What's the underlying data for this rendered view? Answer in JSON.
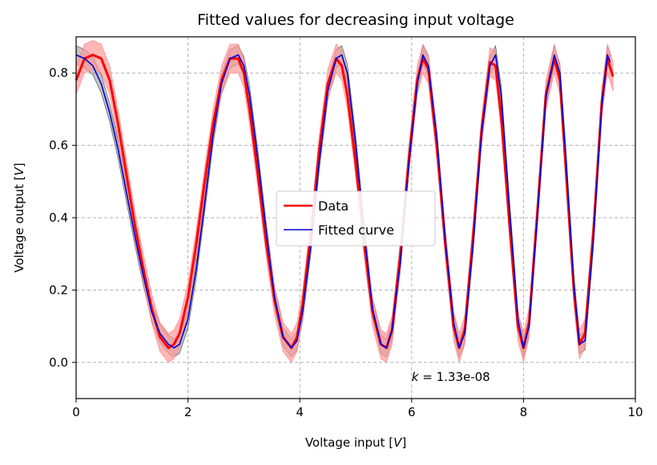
{
  "chart_data": {
    "type": "line",
    "title": "Fitted values for decreasing input voltage",
    "xlabel": "Voltage input [",
    "xlabel_unit": "V",
    "xlabel_close": "]",
    "ylabel": "Voltage output [",
    "ylabel_unit": "V",
    "ylabel_close": "]",
    "xlim": [
      0,
      10
    ],
    "ylim": [
      -0.1,
      0.9
    ],
    "xticks": [
      0,
      2,
      4,
      6,
      8,
      10
    ],
    "yticks": [
      0.0,
      0.2,
      0.4,
      0.6,
      0.8
    ],
    "xtick_labels": [
      "0",
      "2",
      "4",
      "6",
      "8",
      "10"
    ],
    "ytick_labels": [
      "0.0",
      "0.2",
      "0.4",
      "0.6",
      "0.8"
    ],
    "grid": true,
    "legend_position": "center",
    "annotation": {
      "symbol": "k",
      "text": " = 1.33e-08",
      "x": 6.0,
      "y": -0.04
    },
    "series": [
      {
        "name": "Data",
        "color": "#ff0000",
        "band_color": "#ff9999",
        "x": [
          0.0,
          0.15,
          0.3,
          0.45,
          0.6,
          0.75,
          0.9,
          1.05,
          1.2,
          1.35,
          1.5,
          1.65,
          1.75,
          1.85,
          2.0,
          2.15,
          2.3,
          2.45,
          2.6,
          2.75,
          2.9,
          3.0,
          3.1,
          3.25,
          3.4,
          3.55,
          3.7,
          3.85,
          3.95,
          4.05,
          4.2,
          4.35,
          4.5,
          4.65,
          4.75,
          4.85,
          5.0,
          5.15,
          5.3,
          5.45,
          5.55,
          5.65,
          5.8,
          5.95,
          6.1,
          6.2,
          6.3,
          6.45,
          6.6,
          6.75,
          6.85,
          6.95,
          7.1,
          7.25,
          7.4,
          7.5,
          7.6,
          7.75,
          7.9,
          8.0,
          8.1,
          8.25,
          8.4,
          8.55,
          8.65,
          8.75,
          8.9,
          9.0,
          9.1,
          9.25,
          9.4,
          9.5,
          9.6
        ],
        "y": [
          0.78,
          0.84,
          0.85,
          0.84,
          0.78,
          0.66,
          0.52,
          0.38,
          0.26,
          0.15,
          0.07,
          0.04,
          0.05,
          0.08,
          0.18,
          0.33,
          0.5,
          0.66,
          0.78,
          0.84,
          0.84,
          0.8,
          0.7,
          0.52,
          0.33,
          0.17,
          0.07,
          0.04,
          0.07,
          0.16,
          0.36,
          0.59,
          0.77,
          0.84,
          0.82,
          0.74,
          0.55,
          0.33,
          0.14,
          0.05,
          0.04,
          0.09,
          0.3,
          0.56,
          0.78,
          0.84,
          0.81,
          0.6,
          0.33,
          0.1,
          0.04,
          0.09,
          0.35,
          0.64,
          0.83,
          0.82,
          0.68,
          0.38,
          0.1,
          0.04,
          0.11,
          0.42,
          0.74,
          0.84,
          0.78,
          0.55,
          0.2,
          0.05,
          0.08,
          0.36,
          0.72,
          0.84,
          0.79
        ]
      },
      {
        "name": "Fitted curve",
        "color": "#0000dd",
        "band_color": "#555555",
        "x": [
          0.0,
          0.15,
          0.3,
          0.45,
          0.6,
          0.75,
          0.9,
          1.05,
          1.2,
          1.35,
          1.5,
          1.65,
          1.75,
          1.85,
          2.0,
          2.15,
          2.3,
          2.45,
          2.6,
          2.75,
          2.9,
          3.0,
          3.1,
          3.25,
          3.4,
          3.55,
          3.7,
          3.85,
          3.95,
          4.05,
          4.2,
          4.35,
          4.5,
          4.65,
          4.75,
          4.85,
          5.0,
          5.15,
          5.3,
          5.45,
          5.55,
          5.65,
          5.8,
          5.95,
          6.1,
          6.2,
          6.3,
          6.45,
          6.6,
          6.75,
          6.85,
          6.95,
          7.1,
          7.25,
          7.4,
          7.5,
          7.6,
          7.75,
          7.9,
          8.0,
          8.1,
          8.25,
          8.4,
          8.55,
          8.65,
          8.75,
          8.9,
          9.0,
          9.1,
          9.25,
          9.4,
          9.5,
          9.55
        ],
        "y": [
          0.85,
          0.84,
          0.82,
          0.77,
          0.69,
          0.59,
          0.47,
          0.35,
          0.24,
          0.14,
          0.08,
          0.05,
          0.04,
          0.05,
          0.12,
          0.26,
          0.44,
          0.63,
          0.77,
          0.84,
          0.85,
          0.82,
          0.74,
          0.56,
          0.36,
          0.18,
          0.07,
          0.04,
          0.06,
          0.14,
          0.33,
          0.56,
          0.75,
          0.84,
          0.85,
          0.8,
          0.6,
          0.36,
          0.15,
          0.05,
          0.04,
          0.09,
          0.28,
          0.55,
          0.77,
          0.85,
          0.82,
          0.62,
          0.34,
          0.11,
          0.04,
          0.08,
          0.33,
          0.63,
          0.82,
          0.85,
          0.74,
          0.42,
          0.12,
          0.04,
          0.1,
          0.41,
          0.73,
          0.85,
          0.8,
          0.58,
          0.22,
          0.05,
          0.06,
          0.34,
          0.71,
          0.85,
          0.83
        ]
      }
    ]
  }
}
